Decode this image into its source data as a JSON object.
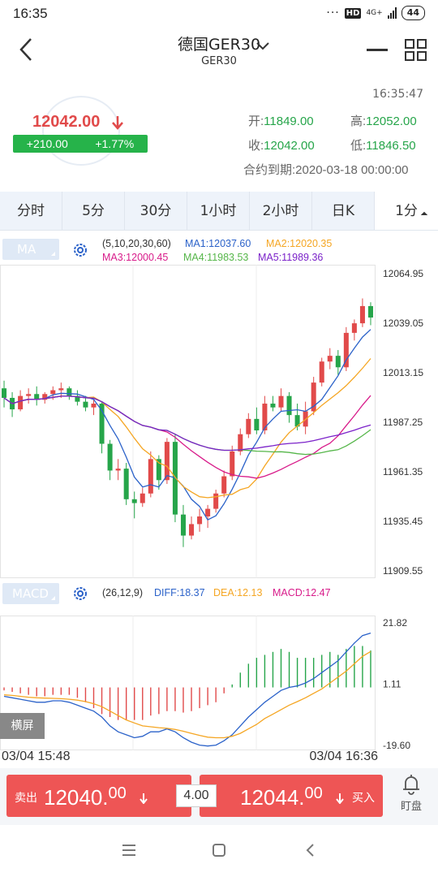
{
  "status": {
    "time": "16:35",
    "dots": "···",
    "hd": "HD",
    "net": "4G+",
    "battery": "44"
  },
  "header": {
    "title": "德国GER30",
    "subtitle": "GER30"
  },
  "quote": {
    "time": "16:35:47",
    "last": "12042.00",
    "change": "+210.00",
    "change_pct": "+1.77%",
    "open_label": "开:",
    "open": "11849.00",
    "high_label": "高:",
    "high": "12052.00",
    "close_label": "收:",
    "close": "12042.00",
    "low_label": "低:",
    "low": "11846.50",
    "expiry": "合约到期:2020-03-18 00:00:00"
  },
  "tabs": [
    "分时",
    "5分",
    "30分",
    "1小时",
    "2小时",
    "日K"
  ],
  "tab_more": "1分",
  "ma": {
    "button": "MA",
    "params": "(5,10,20,30,60)",
    "ma1": "MA1:12037.60",
    "ma2": "MA2:12020.35",
    "ma3": "MA3:12000.45",
    "ma4": "MA4:11983.53",
    "ma5": "MA5:11989.36"
  },
  "macd": {
    "button": "MACD",
    "params": "(26,12,9)",
    "diff": "DIFF:18.37",
    "dea": "DEA:12.13",
    "macd": "MACD:12.47"
  },
  "colors": {
    "up": "#e14a4a",
    "down": "#26a54a",
    "ma1": "#2b62c9",
    "ma2": "#f5a623",
    "ma3": "#d81b8a",
    "ma4": "#55b649",
    "ma5": "#7b22c9"
  },
  "price_axis": [
    "12064.95",
    "12039.05",
    "12013.15",
    "11987.25",
    "11961.35",
    "11935.45",
    "11909.55"
  ],
  "macd_axis": [
    "21.82",
    "1.11",
    "-19.60"
  ],
  "landscape": "横屏",
  "dates": {
    "start": "03/04 15:48",
    "end": "03/04 16:36"
  },
  "trade": {
    "sell_label": "卖出",
    "sell_main": "12040.",
    "sell_dec": "00",
    "spread": "4.00",
    "buy_main": "12044.",
    "buy_dec": "00",
    "buy_label": "买入",
    "watch": "盯盘"
  },
  "chart_data": [
    {
      "type": "candlestick",
      "ylim": [
        11909.55,
        12064.95
      ],
      "y_ticks": [
        12064.95,
        12039.05,
        12013.15,
        11987.25,
        11961.35,
        11935.45,
        11909.55
      ],
      "x_range": [
        "03/04 15:48",
        "03/04 16:36"
      ],
      "candles": [
        [
          12005,
          12009,
          11995,
          12000
        ],
        [
          12000,
          12003,
          11990,
          11994
        ],
        [
          11994,
          12004,
          11993,
          12001
        ],
        [
          12001,
          12005,
          11997,
          12002
        ],
        [
          12002,
          12006,
          11996,
          11999
        ],
        [
          11999,
          12003,
          11997,
          12002
        ],
        [
          12002,
          12006,
          11999,
          12004
        ],
        [
          12004,
          12008,
          12000,
          12005
        ],
        [
          12005,
          12006,
          11999,
          12001
        ],
        [
          12001,
          12004,
          11996,
          11998
        ],
        [
          11998,
          12001,
          11993,
          11995
        ],
        [
          11995,
          11999,
          11991,
          11997
        ],
        [
          11997,
          11998,
          11971,
          11976
        ],
        [
          11976,
          11978,
          11957,
          11962
        ],
        [
          11962,
          11968,
          11957,
          11963
        ],
        [
          11963,
          11966,
          11944,
          11947
        ],
        [
          11947,
          11951,
          11937,
          11945
        ],
        [
          11945,
          11953,
          11943,
          11950
        ],
        [
          11950,
          11972,
          11948,
          11968
        ],
        [
          11968,
          11970,
          11952,
          11957
        ],
        [
          11957,
          11979,
          11955,
          11977
        ],
        [
          11977,
          11981,
          11935,
          11939
        ],
        [
          11939,
          11944,
          11922,
          11928
        ],
        [
          11928,
          11938,
          11926,
          11934
        ],
        [
          11934,
          11942,
          11930,
          11938
        ],
        [
          11938,
          11944,
          11932,
          11942
        ],
        [
          11942,
          11952,
          11940,
          11950
        ],
        [
          11950,
          11962,
          11948,
          11959
        ],
        [
          11959,
          11975,
          11957,
          11972
        ],
        [
          11972,
          11984,
          11970,
          11981
        ],
        [
          11981,
          11992,
          11979,
          11989
        ],
        [
          11989,
          11995,
          11981,
          11983
        ],
        [
          11983,
          12001,
          11981,
          11997
        ],
        [
          11997,
          12001,
          11993,
          11995
        ],
        [
          11995,
          12005,
          11993,
          12001
        ],
        [
          12001,
          12003,
          11987,
          11991
        ],
        [
          11991,
          11997,
          11983,
          11985
        ],
        [
          11985,
          11998,
          11981,
          11993
        ],
        [
          11993,
          12011,
          11991,
          12008
        ],
        [
          12008,
          12021,
          12006,
          12019
        ],
        [
          12019,
          12026,
          12015,
          12022
        ],
        [
          12022,
          12025,
          12012,
          12016
        ],
        [
          12016,
          12037,
          12014,
          12034
        ],
        [
          12034,
          12041,
          12030,
          12039
        ],
        [
          12039,
          12052,
          12037,
          12048
        ],
        [
          12048,
          12050,
          12038,
          12042
        ]
      ]
    },
    {
      "type": "macd",
      "ylim": [
        -19.6,
        21.82
      ],
      "series": [
        {
          "name": "DIFF",
          "values": [
            -3,
            -3.5,
            -4,
            -4.5,
            -5,
            -5,
            -4.5,
            -4.5,
            -5,
            -6,
            -7,
            -8,
            -10,
            -13,
            -15,
            -16,
            -17,
            -16.5,
            -15,
            -15,
            -14,
            -15,
            -17,
            -18.5,
            -19.5,
            -19.8,
            -19.5,
            -18,
            -16,
            -13,
            -10,
            -7.5,
            -5,
            -3,
            -1,
            0,
            0.5,
            1.5,
            3,
            5,
            7,
            9,
            12,
            15,
            17.5,
            18.37
          ]
        },
        {
          "name": "DEA",
          "values": [
            -2.5,
            -2.7,
            -3,
            -3.3,
            -3.5,
            -3.6,
            -3.7,
            -3.8,
            -4,
            -4.3,
            -4.8,
            -5.5,
            -6.5,
            -8,
            -9.5,
            -11,
            -12,
            -13,
            -13.3,
            -13.6,
            -13.8,
            -14.2,
            -14.8,
            -15.5,
            -16.2,
            -16.8,
            -17,
            -17,
            -16.5,
            -15.5,
            -14,
            -12.5,
            -10.5,
            -9,
            -7.5,
            -6,
            -4.8,
            -3.5,
            -2,
            -0.5,
            1.5,
            3.5,
            5.5,
            8,
            10.5,
            12.13
          ]
        },
        {
          "name": "MACD",
          "values": [
            -1,
            -1.5,
            -2,
            -2.5,
            -3,
            -3,
            -2.5,
            -2.5,
            -2.5,
            -3.5,
            -5,
            -7,
            -9,
            -10,
            -11,
            -11,
            -11,
            -11,
            -9.5,
            -9,
            -8,
            -8,
            -8.5,
            -8,
            -7,
            -6,
            -5,
            -2,
            1,
            5,
            8,
            10,
            11,
            12,
            13,
            12,
            10,
            10,
            10,
            11,
            12,
            11,
            13,
            14,
            14,
            12.47
          ]
        }
      ]
    }
  ]
}
